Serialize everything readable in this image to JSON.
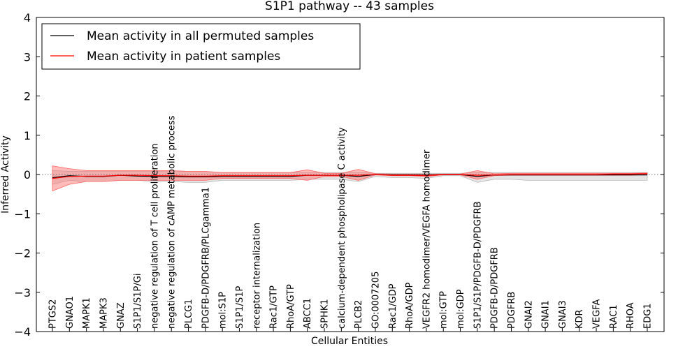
{
  "chart_data": {
    "type": "line",
    "title": "S1P1 pathway -- 43 samples",
    "xlabel": "Cellular Entities",
    "ylabel": "Inferred Activity",
    "ylim": [
      -4,
      4
    ],
    "yticks": [
      "4",
      "3",
      "2",
      "1",
      "0",
      "−1",
      "−2",
      "−3",
      "−4"
    ],
    "ytick_values": [
      4,
      3,
      2,
      1,
      0,
      -1,
      -2,
      -3,
      -4
    ],
    "legend": {
      "placement": "top-left",
      "entries": [
        {
          "label": "Mean activity in all permuted samples",
          "color": "#000000"
        },
        {
          "label": "Mean activity in patient samples",
          "color": "#ff0000"
        }
      ]
    },
    "categories": [
      "PTGS2",
      "GNAO1",
      "MAPK1",
      "MAPK3",
      "GNAZ",
      "S1P1/S1P/Gi",
      "negative regulation of T cell proliferation",
      "negative regulation of cAMP metabolic process",
      "PLCG1",
      "PDGFB-D/PDGFRB/PLCgamma1",
      "mol:S1P",
      "S1P1/S1P",
      "receptor internalization",
      "Rac1/GTP",
      "RhoA/GTP",
      "ABCC1",
      "SPHK1",
      "calcium-dependent phospholipase C activity",
      "PLCB2",
      "GO:0007205",
      "Rac1/GDP",
      "RhoA/GDP",
      "VEGFR2 homodimer/VEGFA homodimer",
      "mol:GTP",
      "mol:GDP",
      "S1P1/S1P/PDGFB-D/PDGFRB",
      "PDGFB-D/PDGFRB",
      "PDGFRB",
      "GNAI2",
      "GNAI1",
      "GNAI3",
      "KDR",
      "VEGFA",
      "RAC1",
      "RHOA",
      "EDG1"
    ],
    "series": [
      {
        "name": "Mean activity in all permuted samples",
        "color": "#000000",
        "values": [
          -0.08,
          -0.03,
          -0.05,
          -0.05,
          -0.02,
          -0.04,
          -0.05,
          -0.05,
          -0.06,
          -0.06,
          -0.05,
          -0.05,
          -0.05,
          -0.05,
          -0.05,
          -0.02,
          -0.02,
          -0.02,
          -0.05,
          0.0,
          -0.01,
          -0.01,
          -0.02,
          0.0,
          0.0,
          -0.05,
          -0.01,
          -0.01,
          -0.01,
          -0.01,
          -0.01,
          -0.01,
          -0.01,
          -0.01,
          -0.01,
          -0.01
        ],
        "band_upper": [
          0.1,
          0.08,
          0.08,
          0.08,
          0.08,
          0.08,
          0.08,
          0.08,
          0.08,
          0.08,
          0.05,
          0.05,
          0.05,
          0.05,
          0.05,
          0.05,
          0.05,
          0.05,
          0.05,
          0.03,
          0.03,
          0.03,
          0.03,
          0.03,
          0.03,
          0.05,
          0.05,
          0.05,
          0.05,
          0.05,
          0.05,
          0.05,
          0.05,
          0.05,
          0.05,
          0.05
        ],
        "band_lower": [
          -0.25,
          -0.15,
          -0.18,
          -0.18,
          -0.15,
          -0.15,
          -0.18,
          -0.18,
          -0.2,
          -0.2,
          -0.15,
          -0.15,
          -0.15,
          -0.15,
          -0.15,
          -0.12,
          -0.12,
          -0.12,
          -0.18,
          -0.05,
          -0.08,
          -0.08,
          -0.1,
          -0.03,
          -0.03,
          -0.2,
          -0.12,
          -0.12,
          -0.15,
          -0.15,
          -0.15,
          -0.15,
          -0.15,
          -0.15,
          -0.15,
          -0.15
        ]
      },
      {
        "name": "Mean activity in patient samples",
        "color": "#ff0000",
        "values": [
          -0.1,
          -0.05,
          -0.04,
          -0.04,
          -0.02,
          -0.02,
          -0.03,
          -0.03,
          -0.04,
          -0.04,
          -0.03,
          -0.03,
          -0.03,
          -0.03,
          -0.03,
          -0.02,
          -0.02,
          -0.02,
          -0.02,
          0.0,
          -0.02,
          -0.02,
          -0.03,
          0.0,
          0.0,
          -0.02,
          -0.01,
          0.0,
          0.0,
          0.0,
          0.0,
          0.0,
          0.0,
          0.01,
          0.01,
          0.02
        ],
        "band_upper": [
          0.22,
          0.15,
          0.1,
          0.1,
          0.1,
          0.1,
          0.1,
          0.1,
          0.08,
          0.08,
          0.05,
          0.05,
          0.05,
          0.05,
          0.05,
          0.12,
          0.03,
          0.03,
          0.13,
          0.02,
          0.01,
          0.01,
          0.01,
          0.01,
          0.01,
          0.1,
          0.02,
          0.03,
          0.03,
          0.03,
          0.03,
          0.03,
          0.03,
          0.03,
          0.03,
          0.04
        ],
        "band_lower": [
          -0.42,
          -0.25,
          -0.18,
          -0.18,
          -0.15,
          -0.15,
          -0.15,
          -0.15,
          -0.15,
          -0.15,
          -0.1,
          -0.1,
          -0.1,
          -0.1,
          -0.1,
          -0.15,
          -0.05,
          -0.05,
          -0.15,
          -0.01,
          -0.03,
          -0.03,
          -0.05,
          -0.01,
          -0.01,
          -0.12,
          -0.03,
          -0.02,
          -0.02,
          -0.02,
          -0.02,
          -0.02,
          -0.02,
          -0.02,
          -0.02,
          0.0
        ]
      }
    ],
    "reference_line": 0
  }
}
